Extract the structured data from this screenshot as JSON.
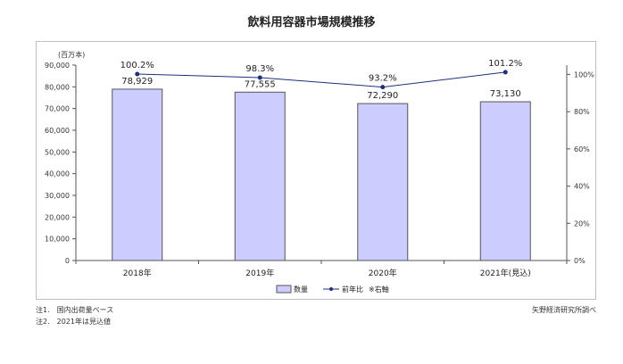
{
  "title": "飲料用容器市場規模推移",
  "chart_data": {
    "type": "bar",
    "title": "飲料用容器市場規模推移",
    "categories": [
      "2018年",
      "2019年",
      "2020年",
      "2021年(見込)"
    ],
    "series": [
      {
        "name": "数量",
        "type": "bar",
        "axis": "left",
        "values": [
          78929,
          77555,
          72290,
          73130
        ],
        "labels": [
          "78,929",
          "77,555",
          "72,290",
          "73,130"
        ]
      },
      {
        "name": "前年比",
        "type": "line",
        "axis": "right",
        "values": [
          100.2,
          98.3,
          93.2,
          101.2
        ],
        "labels": [
          "100.2%",
          "98.3%",
          "93.2%",
          "101.2%"
        ]
      }
    ],
    "ylabel": "(百万本)",
    "ylim": [
      0,
      90000
    ],
    "yticks": [
      "0",
      "10,000",
      "20,000",
      "30,000",
      "40,000",
      "50,000",
      "60,000",
      "70,000",
      "80,000",
      "90,000"
    ],
    "y2lim": [
      0,
      105
    ],
    "y2ticks_values": [
      0,
      20,
      40,
      60,
      80,
      100
    ],
    "y2ticks": [
      "0%",
      "20%",
      "40%",
      "60%",
      "80%",
      "100%"
    ],
    "legend_position": "bottom",
    "legend_note": "※右軸",
    "grid": false,
    "colors": {
      "bar_fill": "#ccccff",
      "bar_stroke": "#555555",
      "line": "#1f2f7a"
    }
  },
  "notes": [
    "注1.　国内出荷量ベース",
    "注2.　2021年は見込値"
  ],
  "source": "矢野経済研究所調べ"
}
